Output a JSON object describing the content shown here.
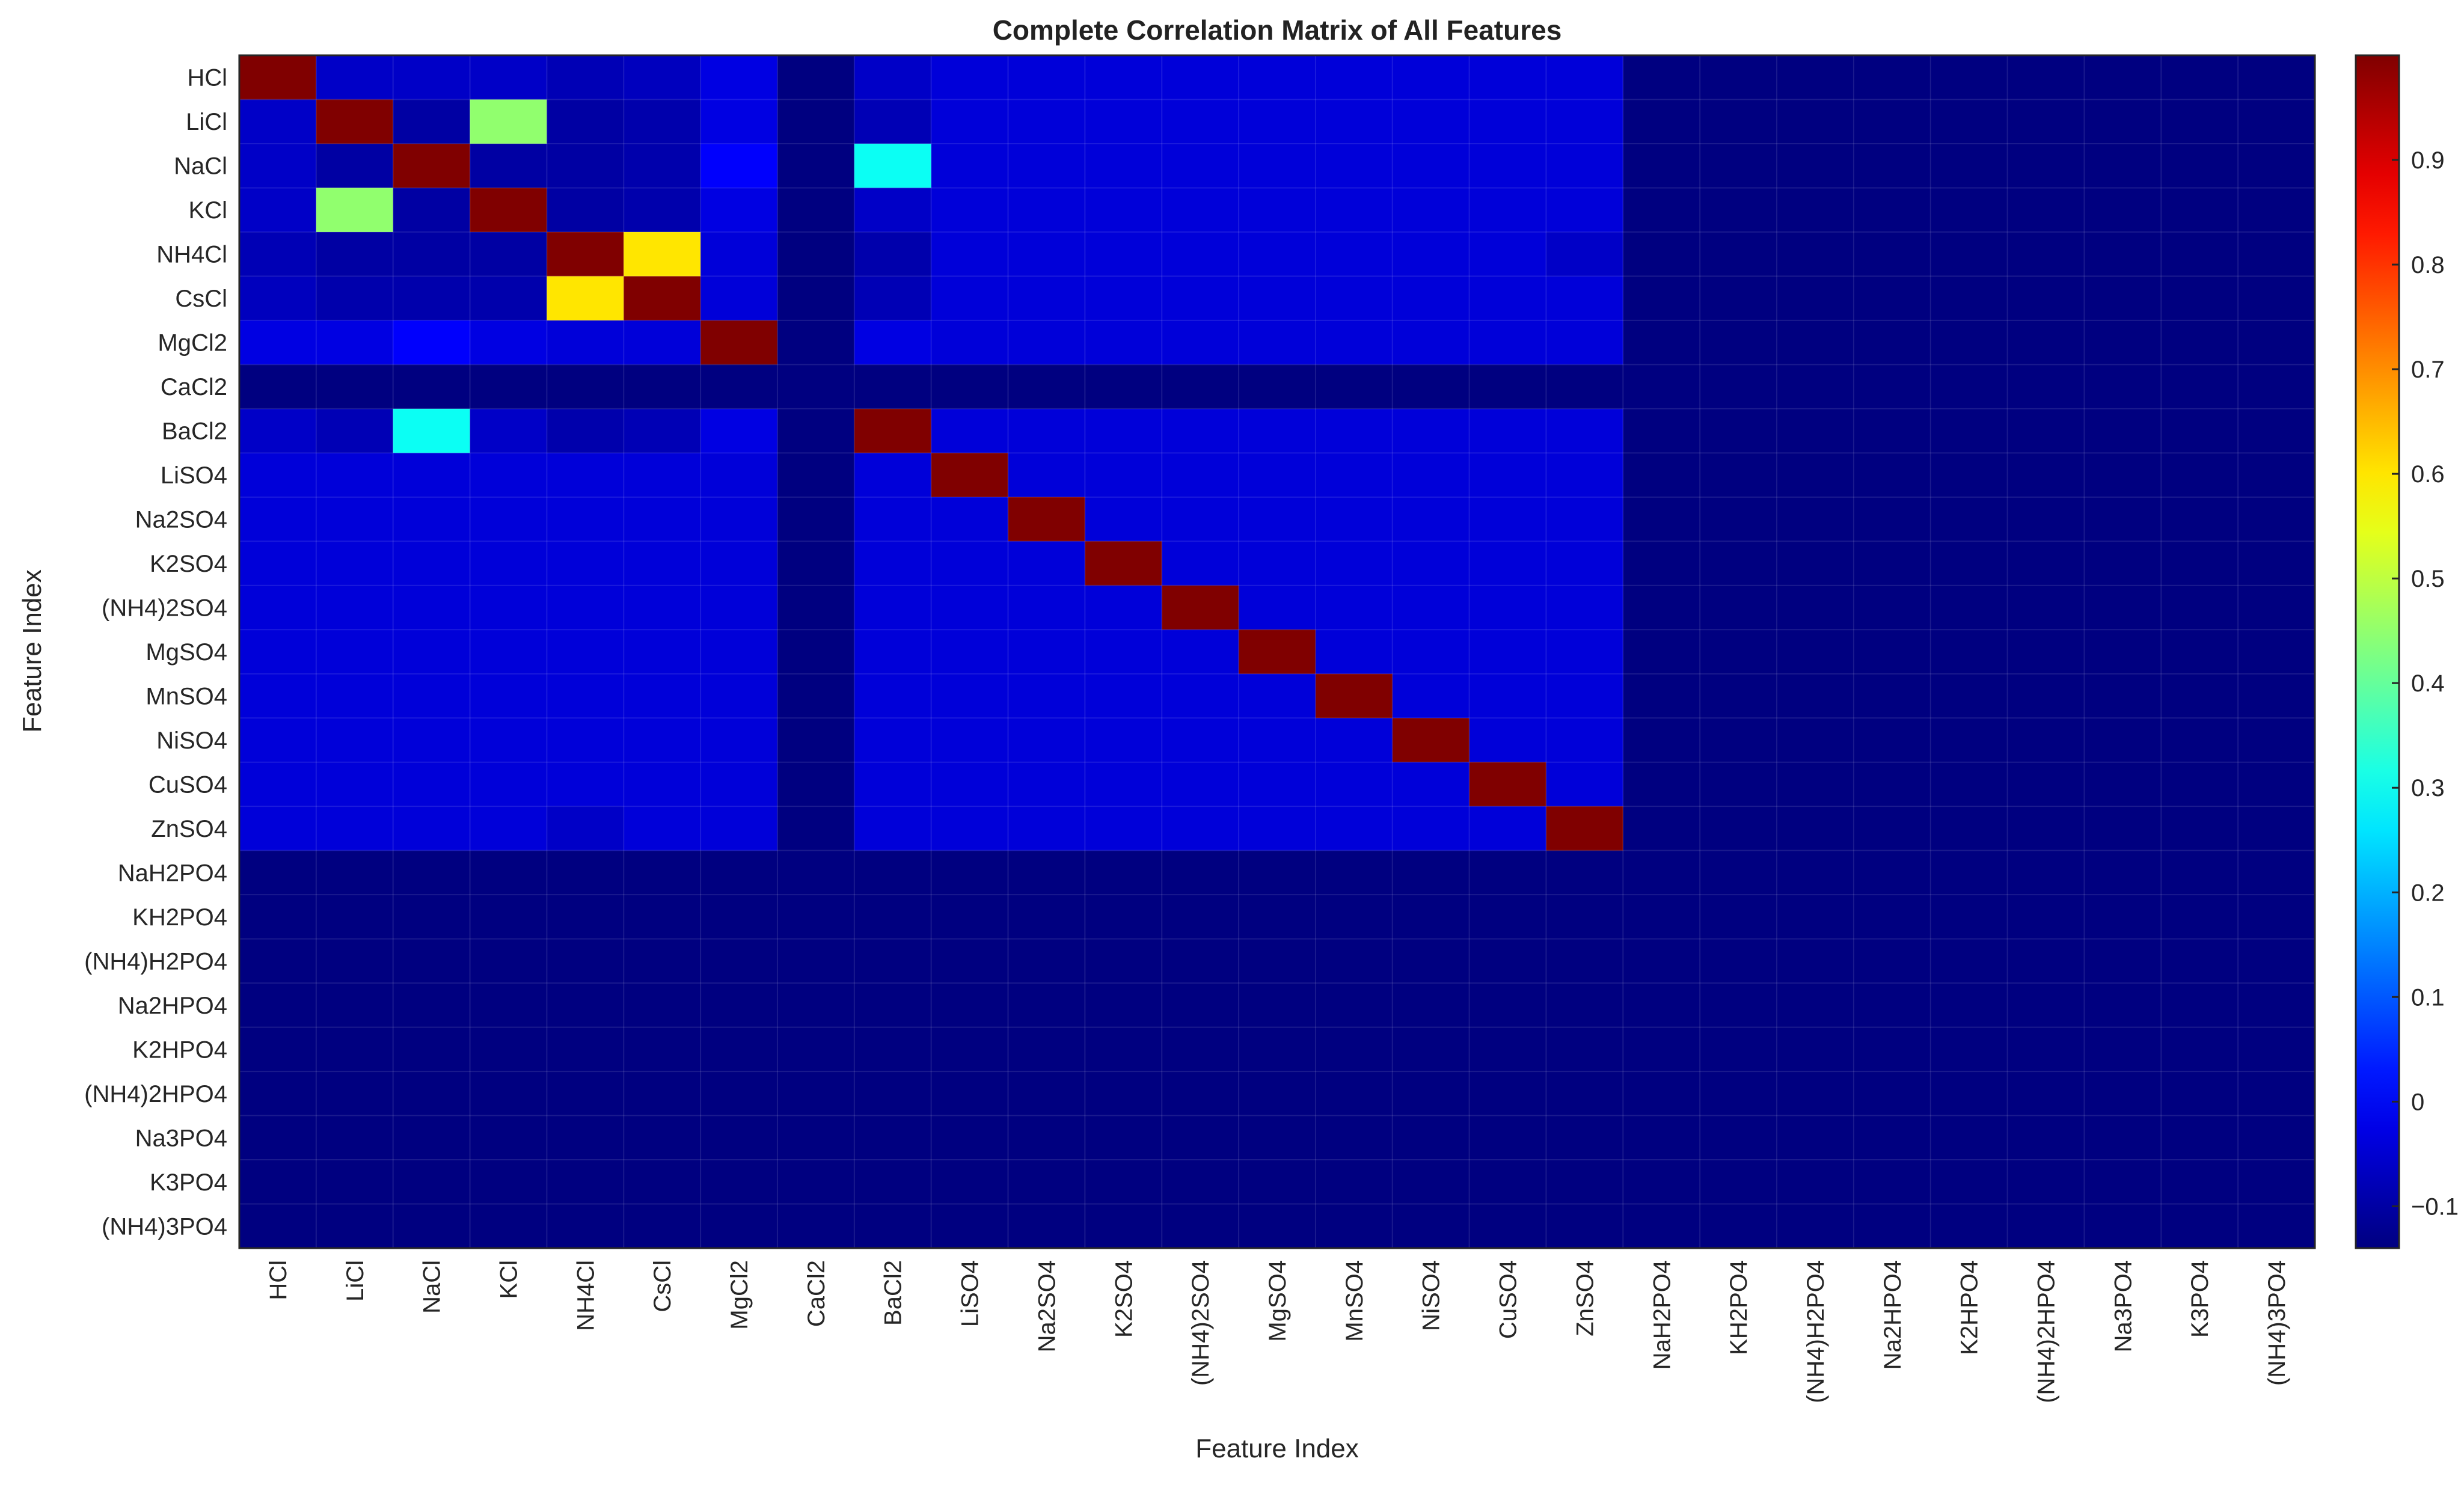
{
  "chart_data": {
    "type": "heatmap",
    "title": "Complete Correlation Matrix of All Features",
    "xlabel": "Feature Index",
    "ylabel": "Feature Index",
    "labels": [
      "HCl",
      "LiCl",
      "NaCl",
      "KCl",
      "NH4Cl",
      "CsCl",
      "MgCl2",
      "CaCl2",
      "BaCl2",
      "LiSO4",
      "Na2SO4",
      "K2SO4",
      "(NH4)2SO4",
      "MgSO4",
      "MnSO4",
      "NiSO4",
      "CuSO4",
      "ZnSO4",
      "NaH2PO4",
      "KH2PO4",
      "(NH4)H2PO4",
      "Na2HPO4",
      "K2HPO4",
      "(NH4)2HPO4",
      "Na3PO4",
      "K3PO4",
      "(NH4)3PO4"
    ],
    "colormap": "jet",
    "clim": [
      -0.14,
      1.0
    ],
    "colorbar_ticks": [
      -0.1,
      0,
      0.1,
      0.2,
      0.3,
      0.4,
      0.5,
      0.6,
      0.7,
      0.8,
      0.9
    ],
    "colorbar_tick_labels": [
      "−0.1",
      "0",
      "0.1",
      "0.2",
      "0.3",
      "0.4",
      "0.5",
      "0.6",
      "0.7",
      "0.8",
      "0.9"
    ],
    "grid": true,
    "colorbar_position": "right",
    "diagonal_value": 1.0,
    "masked_value": -0.14,
    "masked_features": [
      "CaCl2",
      "NaH2PO4",
      "KH2PO4",
      "(NH4)H2PO4",
      "Na2HPO4",
      "K2HPO4",
      "(NH4)2HPO4",
      "Na3PO4",
      "K3PO4",
      "(NH4)3PO4"
    ],
    "default_offdiagonal": -0.04,
    "notable_pairs": [
      {
        "a": "LiCl",
        "b": "KCl",
        "value": 0.45
      },
      {
        "a": "NH4Cl",
        "b": "CsCl",
        "value": 0.6
      },
      {
        "a": "NaCl",
        "b": "BaCl2",
        "value": 0.3
      },
      {
        "a": "NaCl",
        "b": "MgCl2",
        "value": 0.0
      },
      {
        "a": "LiCl",
        "b": "NaCl",
        "value": -0.1
      },
      {
        "a": "NaCl",
        "b": "KCl",
        "value": -0.1
      },
      {
        "a": "LiCl",
        "b": "NH4Cl",
        "value": -0.1
      },
      {
        "a": "NaCl",
        "b": "NH4Cl",
        "value": -0.1
      },
      {
        "a": "KCl",
        "b": "NH4Cl",
        "value": -0.1
      },
      {
        "a": "LiCl",
        "b": "CsCl",
        "value": -0.09
      },
      {
        "a": "NaCl",
        "b": "CsCl",
        "value": -0.09
      },
      {
        "a": "KCl",
        "b": "CsCl",
        "value": -0.09
      },
      {
        "a": "NH4Cl",
        "b": "BaCl2",
        "value": -0.09
      },
      {
        "a": "CsCl",
        "b": "BaCl2",
        "value": -0.08
      },
      {
        "a": "LiCl",
        "b": "BaCl2",
        "value": -0.08
      },
      {
        "a": "HCl",
        "b": "NH4Cl",
        "value": -0.08
      },
      {
        "a": "HCl",
        "b": "CsCl",
        "value": -0.07
      },
      {
        "a": "HCl",
        "b": "LiCl",
        "value": -0.06
      },
      {
        "a": "HCl",
        "b": "NaCl",
        "value": -0.06
      },
      {
        "a": "HCl",
        "b": "KCl",
        "value": -0.06
      },
      {
        "a": "HCl",
        "b": "BaCl2",
        "value": -0.06
      },
      {
        "a": "KCl",
        "b": "BaCl2",
        "value": -0.06
      },
      {
        "a": "NH4Cl",
        "b": "ZnSO4",
        "value": -0.06
      },
      {
        "a": "HCl",
        "b": "MgCl2",
        "value": -0.03
      },
      {
        "a": "LiCl",
        "b": "MgCl2",
        "value": -0.03
      },
      {
        "a": "KCl",
        "b": "MgCl2",
        "value": -0.03
      },
      {
        "a": "NH4Cl",
        "b": "MgCl2",
        "value": -0.04
      },
      {
        "a": "CsCl",
        "b": "MgCl2",
        "value": -0.04
      },
      {
        "a": "MgCl2",
        "b": "BaCl2",
        "value": -0.03
      }
    ]
  }
}
